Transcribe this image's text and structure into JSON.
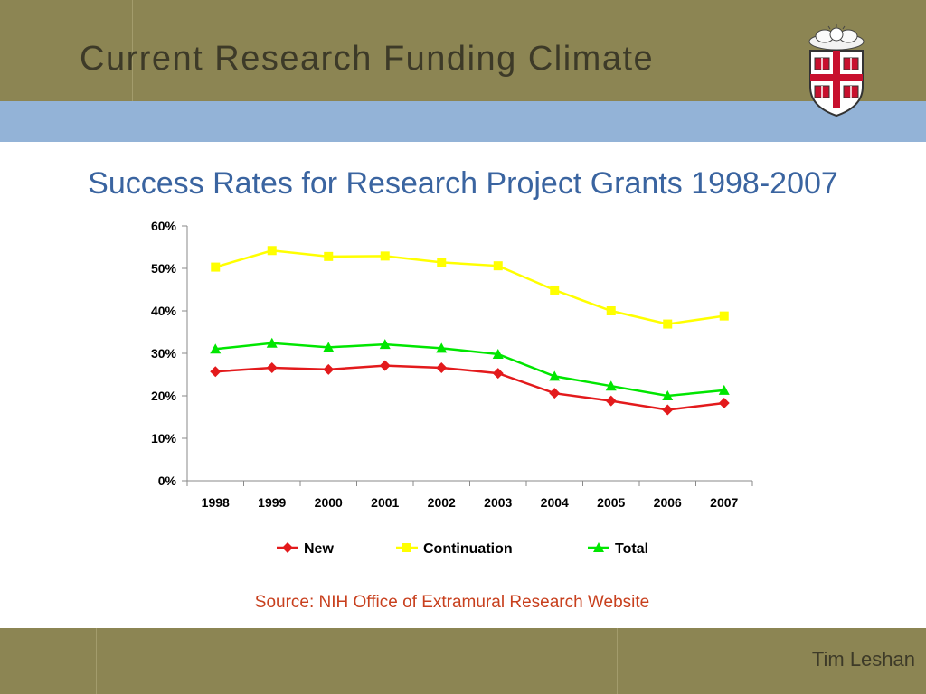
{
  "slide": {
    "title": "Current Research Funding Climate",
    "author": "Tim Leshan",
    "source": "Source: NIH Office of Extramural Research Website",
    "logo_icon": "shield-crest-icon"
  },
  "colors": {
    "header_band": "#8c8553",
    "blue_band": "#93b3d7",
    "title_text": "#3a64a0",
    "source_text": "#c8401e"
  },
  "chart_data": {
    "type": "line",
    "title": "Success Rates for Research Project Grants 1998-2007",
    "xlabel": "",
    "ylabel": "",
    "categories": [
      "1998",
      "1999",
      "2000",
      "2001",
      "2002",
      "2003",
      "2004",
      "2005",
      "2006",
      "2007"
    ],
    "ylim": [
      0,
      60
    ],
    "yticks": [
      "0%",
      "10%",
      "20%",
      "30%",
      "40%",
      "50%",
      "60%"
    ],
    "grid": false,
    "legend_position": "bottom",
    "series": [
      {
        "name": "New",
        "color": "#e31a1c",
        "marker": "diamond",
        "values": [
          25.7,
          26.6,
          26.2,
          27.1,
          26.6,
          25.3,
          20.6,
          18.8,
          16.7,
          18.3
        ]
      },
      {
        "name": "Continuation",
        "color": "#ffff00",
        "marker": "square",
        "values": [
          50.3,
          54.2,
          52.8,
          52.9,
          51.4,
          50.6,
          44.9,
          40.0,
          36.9,
          38.8
        ]
      },
      {
        "name": "Total",
        "color": "#00e600",
        "marker": "triangle",
        "values": [
          31.0,
          32.4,
          31.4,
          32.1,
          31.2,
          29.8,
          24.6,
          22.3,
          20.0,
          21.3
        ]
      }
    ]
  }
}
